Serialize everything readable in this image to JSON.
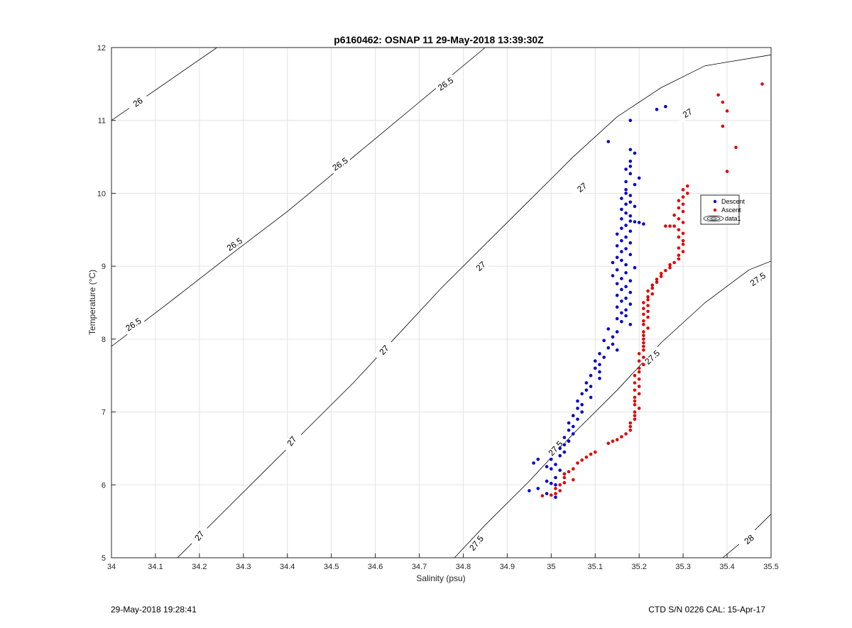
{
  "chart_data": {
    "type": "scatter",
    "title": "p6160462: OSNAP 11 29-May-2018 13:39:30Z",
    "xlabel": "Salinity (psu)",
    "ylabel": "Temperature (°C)",
    "xlim": [
      34,
      35.5
    ],
    "ylim": [
      5,
      12
    ],
    "xticks": [
      "34",
      "34.1",
      "34.2",
      "34.3",
      "34.4",
      "34.5",
      "34.6",
      "34.7",
      "34.8",
      "34.9",
      "35",
      "35.1",
      "35.2",
      "35.3",
      "35.4",
      "35.5"
    ],
    "yticks": [
      "5",
      "6",
      "7",
      "8",
      "9",
      "10",
      "11",
      "12"
    ],
    "grid": true,
    "legend": {
      "placement": "right",
      "entries": [
        {
          "label": "Descent",
          "color": "#0000cc",
          "marker": "dot"
        },
        {
          "label": "Ascent",
          "color": "#e00000",
          "marker": "dot"
        },
        {
          "label": "data1",
          "color": "#000000",
          "marker": "contour"
        }
      ]
    },
    "contours": [
      {
        "level": "26",
        "points": [
          [
            34.0,
            11.0
          ],
          [
            34.24,
            12.0
          ]
        ]
      },
      {
        "level": "26.5",
        "points": [
          [
            34.0,
            7.9
          ],
          [
            34.12,
            8.45
          ],
          [
            34.28,
            9.2
          ],
          [
            34.4,
            9.75
          ],
          [
            34.5,
            10.25
          ],
          [
            34.6,
            10.75
          ],
          [
            34.7,
            11.25
          ],
          [
            34.85,
            12.0
          ]
        ]
      },
      {
        "level": "27",
        "points": [
          [
            34.15,
            5.0
          ],
          [
            34.25,
            5.6
          ],
          [
            34.35,
            6.2
          ],
          [
            34.45,
            6.8
          ],
          [
            34.55,
            7.4
          ],
          [
            34.65,
            8.05
          ],
          [
            34.75,
            8.7
          ],
          [
            34.85,
            9.3
          ],
          [
            34.95,
            9.9
          ],
          [
            35.05,
            10.5
          ],
          [
            35.15,
            11.05
          ],
          [
            35.25,
            11.45
          ],
          [
            35.35,
            11.75
          ],
          [
            35.5,
            11.9
          ]
        ]
      },
      {
        "level": "27.5",
        "points": [
          [
            34.78,
            5.0
          ],
          [
            34.85,
            5.45
          ],
          [
            34.95,
            6.05
          ],
          [
            35.05,
            6.7
          ],
          [
            35.15,
            7.3
          ],
          [
            35.25,
            7.95
          ],
          [
            35.35,
            8.5
          ],
          [
            35.45,
            8.95
          ],
          [
            35.5,
            9.07
          ]
        ]
      },
      {
        "level": "28",
        "points": [
          [
            35.39,
            5.0
          ],
          [
            35.45,
            5.3
          ],
          [
            35.5,
            5.6
          ]
        ]
      }
    ],
    "contour_labels": [
      {
        "text": "26",
        "x": 34.06,
        "y": 11.25,
        "angle": -34
      },
      {
        "text": "26.5",
        "x": 34.05,
        "y": 8.2,
        "angle": -34
      },
      {
        "text": "26.5",
        "x": 34.28,
        "y": 9.3,
        "angle": -34
      },
      {
        "text": "26.5",
        "x": 34.52,
        "y": 10.4,
        "angle": -34
      },
      {
        "text": "26.5",
        "x": 34.76,
        "y": 11.5,
        "angle": -34
      },
      {
        "text": "27",
        "x": 34.2,
        "y": 5.3,
        "angle": -52
      },
      {
        "text": "27",
        "x": 34.41,
        "y": 6.6,
        "angle": -52
      },
      {
        "text": "27",
        "x": 34.62,
        "y": 7.85,
        "angle": -48
      },
      {
        "text": "27",
        "x": 34.84,
        "y": 9.0,
        "angle": -42
      },
      {
        "text": "27",
        "x": 35.07,
        "y": 10.08,
        "angle": -38
      },
      {
        "text": "27",
        "x": 35.31,
        "y": 11.1,
        "angle": -32
      },
      {
        "text": "27.5",
        "x": 34.83,
        "y": 5.2,
        "angle": -50
      },
      {
        "text": "27.5",
        "x": 35.01,
        "y": 6.5,
        "angle": -48
      },
      {
        "text": "27.5",
        "x": 35.23,
        "y": 7.75,
        "angle": -42
      },
      {
        "text": "27.5",
        "x": 35.47,
        "y": 8.82,
        "angle": -35
      },
      {
        "text": "28",
        "x": 35.45,
        "y": 5.25,
        "angle": -40
      }
    ],
    "series": [
      {
        "name": "Descent",
        "color": "#0000cc",
        "points": [
          [
            35.26,
            11.19
          ],
          [
            35.24,
            11.15
          ],
          [
            35.18,
            11.0
          ],
          [
            35.13,
            10.71
          ],
          [
            35.18,
            10.6
          ],
          [
            35.19,
            10.55
          ],
          [
            35.18,
            10.44
          ],
          [
            35.18,
            10.37
          ],
          [
            35.17,
            10.33
          ],
          [
            35.18,
            10.27
          ],
          [
            35.2,
            10.21
          ],
          [
            35.17,
            10.16
          ],
          [
            35.19,
            10.12
          ],
          [
            35.17,
            10.05
          ],
          [
            35.17,
            10.0
          ],
          [
            35.18,
            9.97
          ],
          [
            35.16,
            9.93
          ],
          [
            35.18,
            9.88
          ],
          [
            35.17,
            9.85
          ],
          [
            35.19,
            9.82
          ],
          [
            35.16,
            9.78
          ],
          [
            35.17,
            9.73
          ],
          [
            35.18,
            9.69
          ],
          [
            35.16,
            9.65
          ],
          [
            35.18,
            9.62
          ],
          [
            35.19,
            9.61
          ],
          [
            35.2,
            9.6
          ],
          [
            35.21,
            9.58
          ],
          [
            35.17,
            9.56
          ],
          [
            35.16,
            9.52
          ],
          [
            35.18,
            9.48
          ],
          [
            35.15,
            9.44
          ],
          [
            35.17,
            9.4
          ],
          [
            35.16,
            9.35
          ],
          [
            35.18,
            9.32
          ],
          [
            35.15,
            9.28
          ],
          [
            35.17,
            9.24
          ],
          [
            35.16,
            9.2
          ],
          [
            35.18,
            9.16
          ],
          [
            35.15,
            9.12
          ],
          [
            35.16,
            9.08
          ],
          [
            35.14,
            9.05
          ],
          [
            35.17,
            9.02
          ],
          [
            35.19,
            8.98
          ],
          [
            35.15,
            8.95
          ],
          [
            35.17,
            8.91
          ],
          [
            35.14,
            8.87
          ],
          [
            35.16,
            8.83
          ],
          [
            35.18,
            8.8
          ],
          [
            35.15,
            8.76
          ],
          [
            35.17,
            8.72
          ],
          [
            35.16,
            8.68
          ],
          [
            35.18,
            8.64
          ],
          [
            35.15,
            8.6
          ],
          [
            35.17,
            8.56
          ],
          [
            35.16,
            8.52
          ],
          [
            35.18,
            8.48
          ],
          [
            35.15,
            8.44
          ],
          [
            35.17,
            8.4
          ],
          [
            35.16,
            8.36
          ],
          [
            35.17,
            8.32
          ],
          [
            35.15,
            8.28
          ],
          [
            35.16,
            8.24
          ],
          [
            35.18,
            8.2
          ],
          [
            35.13,
            8.14
          ],
          [
            35.15,
            8.1
          ],
          [
            35.14,
            8.03
          ],
          [
            35.12,
            7.98
          ],
          [
            35.14,
            7.93
          ],
          [
            35.13,
            7.88
          ],
          [
            35.15,
            7.85
          ],
          [
            35.11,
            7.8
          ],
          [
            35.12,
            7.75
          ],
          [
            35.1,
            7.7
          ],
          [
            35.11,
            7.65
          ],
          [
            35.1,
            7.6
          ],
          [
            35.11,
            7.55
          ],
          [
            35.09,
            7.5
          ],
          [
            35.11,
            7.46
          ],
          [
            35.08,
            7.4
          ],
          [
            35.09,
            7.35
          ],
          [
            35.08,
            7.3
          ],
          [
            35.07,
            7.25
          ],
          [
            35.09,
            7.2
          ],
          [
            35.06,
            7.15
          ],
          [
            35.07,
            7.1
          ],
          [
            35.06,
            7.05
          ],
          [
            35.07,
            7.0
          ],
          [
            35.05,
            6.95
          ],
          [
            35.06,
            6.9
          ],
          [
            35.04,
            6.85
          ],
          [
            35.05,
            6.8
          ],
          [
            35.04,
            6.75
          ],
          [
            35.05,
            6.7
          ],
          [
            35.03,
            6.65
          ],
          [
            35.04,
            6.6
          ],
          [
            35.03,
            6.55
          ],
          [
            35.02,
            6.5
          ],
          [
            35.03,
            6.45
          ],
          [
            35.02,
            6.4
          ],
          [
            35.0,
            6.35
          ],
          [
            34.97,
            6.35
          ],
          [
            34.96,
            6.3
          ],
          [
            35.01,
            6.28
          ],
          [
            34.99,
            6.25
          ],
          [
            35.0,
            6.22
          ],
          [
            35.02,
            6.2
          ],
          [
            35.03,
            6.15
          ],
          [
            35.01,
            6.1
          ],
          [
            34.99,
            6.05
          ],
          [
            35.0,
            6.02
          ],
          [
            35.01,
            6.0
          ],
          [
            34.97,
            5.95
          ],
          [
            34.95,
            5.92
          ],
          [
            34.99,
            5.88
          ],
          [
            35.01,
            5.83
          ]
        ]
      },
      {
        "name": "Ascent",
        "color": "#e00000",
        "points": [
          [
            35.48,
            11.5
          ],
          [
            35.38,
            11.35
          ],
          [
            35.39,
            11.25
          ],
          [
            35.4,
            11.13
          ],
          [
            35.39,
            10.92
          ],
          [
            35.42,
            10.63
          ],
          [
            35.4,
            10.3
          ],
          [
            35.31,
            10.1
          ],
          [
            35.3,
            10.05
          ],
          [
            35.31,
            10.0
          ],
          [
            35.3,
            9.95
          ],
          [
            35.29,
            9.9
          ],
          [
            35.3,
            9.85
          ],
          [
            35.29,
            9.8
          ],
          [
            35.3,
            9.75
          ],
          [
            35.28,
            9.7
          ],
          [
            35.29,
            9.65
          ],
          [
            35.3,
            9.6
          ],
          [
            35.28,
            9.55
          ],
          [
            35.27,
            9.55
          ],
          [
            35.26,
            9.55
          ],
          [
            35.29,
            9.5
          ],
          [
            35.3,
            9.45
          ],
          [
            35.29,
            9.4
          ],
          [
            35.3,
            9.35
          ],
          [
            35.3,
            9.3
          ],
          [
            35.29,
            9.25
          ],
          [
            35.3,
            9.2
          ],
          [
            35.29,
            9.15
          ],
          [
            35.29,
            9.1
          ],
          [
            35.28,
            9.05
          ],
          [
            35.27,
            9.02
          ],
          [
            35.27,
            8.98
          ],
          [
            35.26,
            8.94
          ],
          [
            35.25,
            8.9
          ],
          [
            35.25,
            8.86
          ],
          [
            35.24,
            8.82
          ],
          [
            35.24,
            8.78
          ],
          [
            35.23,
            8.74
          ],
          [
            35.23,
            8.7
          ],
          [
            35.22,
            8.66
          ],
          [
            35.23,
            8.62
          ],
          [
            35.22,
            8.58
          ],
          [
            35.22,
            8.54
          ],
          [
            35.21,
            8.5
          ],
          [
            35.22,
            8.46
          ],
          [
            35.21,
            8.42
          ],
          [
            35.22,
            8.38
          ],
          [
            35.21,
            8.34
          ],
          [
            35.22,
            8.3
          ],
          [
            35.21,
            8.25
          ],
          [
            35.21,
            8.2
          ],
          [
            35.22,
            8.15
          ],
          [
            35.21,
            8.1
          ],
          [
            35.21,
            8.05
          ],
          [
            35.21,
            8.0
          ],
          [
            35.21,
            7.95
          ],
          [
            35.21,
            7.9
          ],
          [
            35.21,
            7.85
          ],
          [
            35.2,
            7.8
          ],
          [
            35.21,
            7.75
          ],
          [
            35.2,
            7.7
          ],
          [
            35.21,
            7.65
          ],
          [
            35.2,
            7.6
          ],
          [
            35.2,
            7.55
          ],
          [
            35.19,
            7.5
          ],
          [
            35.2,
            7.45
          ],
          [
            35.19,
            7.4
          ],
          [
            35.2,
            7.35
          ],
          [
            35.19,
            7.3
          ],
          [
            35.2,
            7.25
          ],
          [
            35.19,
            7.2
          ],
          [
            35.19,
            7.15
          ],
          [
            35.19,
            7.1
          ],
          [
            35.2,
            7.05
          ],
          [
            35.19,
            7.0
          ],
          [
            35.19,
            6.95
          ],
          [
            35.19,
            6.9
          ],
          [
            35.18,
            6.85
          ],
          [
            35.18,
            6.8
          ],
          [
            35.18,
            6.75
          ],
          [
            35.17,
            6.7
          ],
          [
            35.16,
            6.66
          ],
          [
            35.15,
            6.62
          ],
          [
            35.14,
            6.6
          ],
          [
            35.13,
            6.57
          ],
          [
            35.1,
            6.45
          ],
          [
            35.09,
            6.42
          ],
          [
            35.08,
            6.38
          ],
          [
            35.07,
            6.34
          ],
          [
            35.06,
            6.3
          ],
          [
            35.05,
            6.22
          ],
          [
            35.04,
            6.18
          ],
          [
            35.03,
            6.15
          ],
          [
            35.03,
            6.1
          ],
          [
            35.05,
            6.07
          ],
          [
            35.03,
            6.03
          ],
          [
            35.02,
            6.0
          ],
          [
            35.01,
            5.95
          ],
          [
            35.02,
            5.92
          ],
          [
            35.01,
            5.88
          ],
          [
            35.0,
            5.86
          ],
          [
            34.98,
            5.85
          ]
        ]
      }
    ]
  },
  "footer": {
    "left": "29-May-2018 19:28:41",
    "right": "CTD S/N 0226  CAL: 15-Apr-17"
  }
}
